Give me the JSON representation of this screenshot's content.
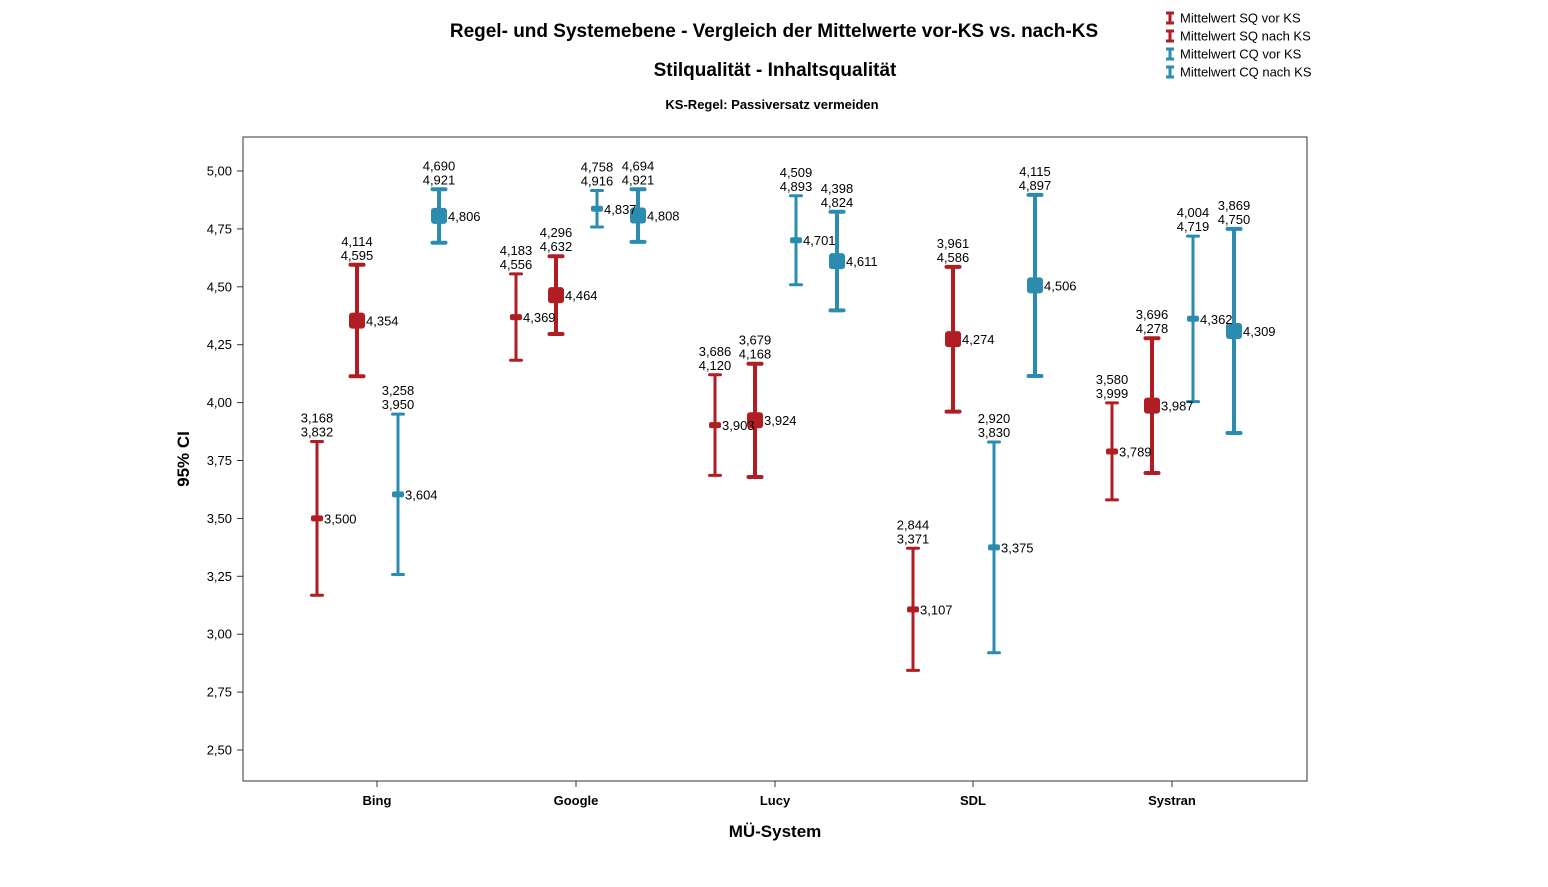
{
  "chart_data": {
    "type": "errorbar",
    "title": "Regel- und Systemebene - Vergleich der Mittelwerte vor-KS vs. nach-KS",
    "subtitle": "Stilqualität - Inhaltsqualität",
    "subtitle2": "KS-Regel: Passiversatz vermeiden",
    "xlabel": "MÜ-System",
    "ylabel": "95% CI",
    "ylim": [
      2.4,
      5.15
    ],
    "yticks": [
      "2,50",
      "2,75",
      "3,00",
      "3,25",
      "3,50",
      "3,75",
      "4,00",
      "4,25",
      "4,50",
      "4,75",
      "5,00"
    ],
    "ytick_values": [
      2.5,
      2.75,
      3.0,
      3.25,
      3.5,
      3.75,
      4.0,
      4.25,
      4.5,
      4.75,
      5.0
    ],
    "categories": [
      "Bing",
      "Google",
      "Lucy",
      "SDL",
      "Systran"
    ],
    "legend_position": "top-right",
    "series": [
      {
        "name": "Mittelwert SQ vor KS",
        "color": "#b01e23",
        "marker": "small",
        "mean": [
          3.5,
          4.369,
          3.903,
          3.107,
          3.789
        ],
        "lower": [
          3.168,
          4.183,
          3.686,
          2.844,
          3.58
        ],
        "upper": [
          3.832,
          4.556,
          4.12,
          3.371,
          3.999
        ],
        "mean_labels": [
          "3,500",
          "4,369",
          "3,903",
          "3,107",
          "3,789"
        ],
        "lower_labels": [
          "3,168",
          "4,183",
          "3,686",
          "2,844",
          "3,580"
        ],
        "upper_labels": [
          "3,832",
          "4,556",
          "4,120",
          "3,371",
          "3,999"
        ]
      },
      {
        "name": "Mittelwert SQ nach KS",
        "color": "#b01e23",
        "marker": "square",
        "mean": [
          4.354,
          4.464,
          3.924,
          4.274,
          3.987
        ],
        "lower": [
          4.114,
          4.296,
          3.679,
          3.961,
          3.696
        ],
        "upper": [
          4.595,
          4.632,
          4.168,
          4.586,
          4.278
        ],
        "mean_labels": [
          "4,354",
          "4,464",
          "3,924",
          "4,274",
          "3,987"
        ],
        "lower_labels": [
          "4,114",
          "4,296",
          "3,679",
          "3,961",
          "3,696"
        ],
        "upper_labels": [
          "4,595",
          "4,632",
          "4,168",
          "4,586",
          "4,278"
        ]
      },
      {
        "name": "Mittelwert CQ vor KS",
        "color": "#2b8cb0",
        "marker": "small",
        "mean": [
          3.604,
          4.837,
          4.701,
          3.375,
          4.362
        ],
        "lower": [
          3.258,
          4.758,
          4.509,
          2.92,
          4.004
        ],
        "upper": [
          3.95,
          4.916,
          4.893,
          3.83,
          4.719
        ],
        "mean_labels": [
          "3,604",
          "4,837",
          "4,701",
          "3,375",
          "4,362"
        ],
        "lower_labels": [
          "3,258",
          "4,758",
          "4,509",
          "2,920",
          "4,004"
        ],
        "upper_labels": [
          "3,950",
          "4,916",
          "4,893",
          "3,830",
          "4,719"
        ]
      },
      {
        "name": "Mittelwert CQ nach KS",
        "color": "#2b8cb0",
        "marker": "square",
        "mean": [
          4.806,
          4.808,
          4.611,
          4.506,
          4.309
        ],
        "lower": [
          4.69,
          4.694,
          4.398,
          4.115,
          3.869
        ],
        "upper": [
          4.921,
          4.921,
          4.824,
          4.897,
          4.75
        ],
        "mean_labels": [
          "4,806",
          "4,808",
          "4,611",
          "4,506",
          "4,309"
        ],
        "lower_labels": [
          "4,690",
          "4,694",
          "4,398",
          "4,115",
          "3,869"
        ],
        "upper_labels": [
          "4,921",
          "4,921",
          "4,824",
          "4,897",
          "4,750"
        ]
      }
    ]
  }
}
